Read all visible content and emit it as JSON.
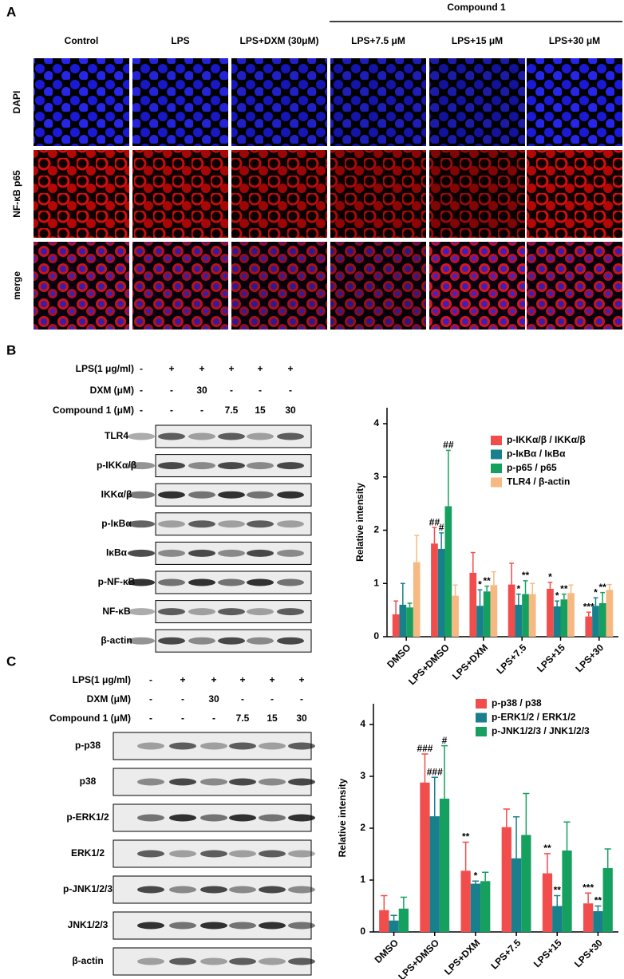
{
  "panel_a": {
    "label": "A",
    "group_label": "Compound 1",
    "columns": [
      "Control",
      "LPS",
      "LPS+DXM (30μM)",
      "LPS+7.5 μM",
      "LPS+15 μM",
      "LPS+30 μM"
    ],
    "rows": [
      "DAPI",
      "NF-κB p65",
      "merge"
    ]
  },
  "panel_b": {
    "label": "B",
    "treatments": [
      {
        "label": "LPS(1 μg/ml)",
        "cells": [
          "-",
          "+",
          "+",
          "+",
          "+",
          "+"
        ]
      },
      {
        "label": "DXM (μM)",
        "cells": [
          "-",
          "-",
          "30",
          "-",
          "-",
          "-"
        ]
      },
      {
        "label": "Compound 1 (μM)",
        "cells": [
          "-",
          "-",
          "-",
          "7.5",
          "15",
          "30"
        ]
      }
    ],
    "blots": [
      "TLR4",
      "p-IKKα/β",
      "IKKα/β",
      "p-IκBα",
      "IκBα",
      "p-NF-κB",
      "NF-κB",
      "β-actin"
    ]
  },
  "panel_c": {
    "label": "C",
    "treatments": [
      {
        "label": "LPS(1 μg/ml)",
        "cells": [
          "-",
          "+",
          "+",
          "+",
          "+",
          "+"
        ]
      },
      {
        "label": "DXM (μM)",
        "cells": [
          "-",
          "-",
          "30",
          "-",
          "-",
          "-"
        ]
      },
      {
        "label": "Compound 1 (μM)",
        "cells": [
          "-",
          "-",
          "-",
          "7.5",
          "15",
          "30"
        ]
      }
    ],
    "blots": [
      "p-p38",
      "p38",
      "p-ERK1/2",
      "ERK1/2",
      "p-JNK1/2/3",
      "JNK1/2/3",
      "β-actin"
    ]
  },
  "chart_data": [
    {
      "type": "bar",
      "ylabel": "Relative intensity",
      "categories": [
        "DMSO",
        "LPS+DMSO",
        "LPS+DXM",
        "LPS+7.5",
        "LPS+15",
        "LPS+30"
      ],
      "ylim": [
        0,
        4.3
      ],
      "yticks": [
        0,
        1,
        2,
        3,
        4
      ],
      "legend": "upper right",
      "series": [
        {
          "name": "p-IKKα/β / IKKα/β",
          "color": "#f24d4d",
          "values": [
            0.42,
            1.75,
            1.2,
            0.98,
            0.9,
            0.38
          ],
          "errors": [
            0.25,
            0.3,
            0.38,
            0.4,
            0.12,
            0.08
          ],
          "significance": [
            null,
            "##",
            null,
            null,
            "*",
            "***"
          ]
        },
        {
          "name": "p-IκBα / IκBα",
          "color": "#18808c",
          "values": [
            0.6,
            1.65,
            0.58,
            0.6,
            0.57,
            0.58
          ],
          "errors": [
            0.4,
            0.3,
            0.3,
            0.2,
            0.1,
            0.15
          ],
          "significance": [
            null,
            "#",
            "*",
            "*",
            "*",
            "*"
          ]
        },
        {
          "name": "p-p65 / p65",
          "color": "#16a060",
          "values": [
            0.55,
            2.45,
            0.85,
            0.8,
            0.7,
            0.63
          ],
          "errors": [
            0.08,
            1.05,
            0.1,
            0.25,
            0.1,
            0.2
          ],
          "significance": [
            null,
            "##",
            "**",
            "**",
            "**",
            "**"
          ]
        },
        {
          "name": "TLR4 / β-actin",
          "color": "#f7b982",
          "values": [
            1.4,
            0.77,
            0.97,
            0.8,
            0.82,
            0.88
          ],
          "errors": [
            0.5,
            0.2,
            0.25,
            0.2,
            0.15,
            0.1
          ],
          "significance": [
            null,
            null,
            null,
            null,
            null,
            null
          ]
        }
      ]
    },
    {
      "type": "bar",
      "ylabel": "Relative intensity",
      "categories": [
        "DMSO",
        "LPS+DMSO",
        "LPS+DXM",
        "LPS+7.5",
        "LPS+15",
        "LPS+30"
      ],
      "ylim": [
        0,
        4.4
      ],
      "yticks": [
        0,
        1,
        2,
        3,
        4
      ],
      "legend": "upper right",
      "series": [
        {
          "name": "p-p38 / p38",
          "color": "#f24d4d",
          "values": [
            0.42,
            2.88,
            1.18,
            2.02,
            1.13,
            0.55
          ],
          "errors": [
            0.28,
            0.55,
            0.55,
            0.35,
            0.38,
            0.2
          ],
          "significance": [
            null,
            "###",
            "**",
            null,
            "**",
            "***"
          ]
        },
        {
          "name": "p-ERK1/2 / ERK1/2",
          "color": "#18808c",
          "values": [
            0.22,
            2.23,
            0.93,
            1.42,
            0.5,
            0.4
          ],
          "errors": [
            0.1,
            0.75,
            0.05,
            0.8,
            0.2,
            0.1
          ],
          "significance": [
            null,
            "###",
            "*",
            null,
            "**",
            "**"
          ]
        },
        {
          "name": "p-JNK1/2/3 / JNK1/2/3",
          "color": "#16a060",
          "values": [
            0.45,
            2.57,
            0.98,
            1.87,
            1.57,
            1.23
          ],
          "errors": [
            0.22,
            1.02,
            0.17,
            0.8,
            0.55,
            0.37
          ],
          "significance": [
            null,
            "#",
            null,
            null,
            null,
            null
          ]
        }
      ]
    }
  ]
}
